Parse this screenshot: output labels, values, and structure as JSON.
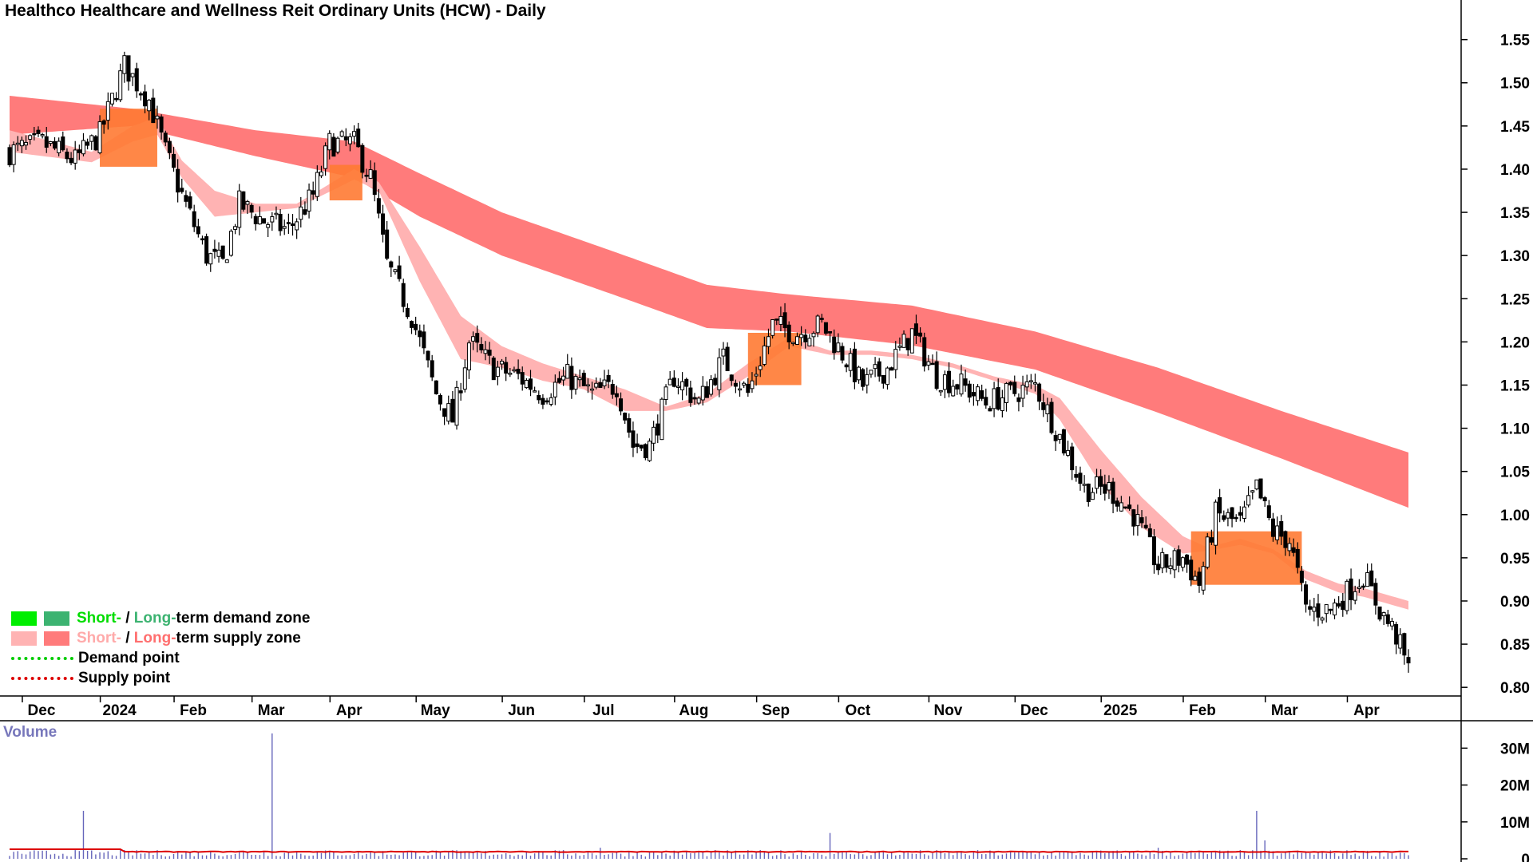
{
  "title": "Healthco Healthcare and Wellness Reit Ordinary Units (HCW) - Daily",
  "colors": {
    "demand_short": "#00ee00",
    "demand_long": "#3cb371",
    "supply_short": "#ffb3b3",
    "supply_long": "#ff7b7b",
    "overlap": "#ff7a33",
    "demand_point": "#00cc00",
    "supply_point": "#dd0000",
    "volume_bar": "#6666bb",
    "volume_ma": "#dd0000"
  },
  "legend": {
    "demand_short": "Short-",
    "demand_sep": " / ",
    "demand_long": "Long-",
    "demand_rest": "term demand zone",
    "supply_short": "Short-",
    "supply_sep": " / ",
    "supply_long": "Long-",
    "supply_rest": "term supply zone",
    "demand_point": "Demand point",
    "supply_point": "Supply point"
  },
  "volume_label": "Volume",
  "chart_data": {
    "type": "line",
    "title": "Healthco Healthcare and Wellness Reit Ordinary Units (HCW) - Daily",
    "y_axis_ticks": [
      "1.55",
      "1.50",
      "1.45",
      "1.40",
      "1.35",
      "1.30",
      "1.25",
      "1.20",
      "1.15",
      "1.10",
      "1.05",
      "1.00",
      "0.95",
      "0.90",
      "0.85",
      "0.80"
    ],
    "ylim": [
      0.79,
      1.57
    ],
    "x_tick_labels": [
      "Dec",
      "2024",
      "Feb",
      "Mar",
      "Apr",
      "May",
      "Jun",
      "Jul",
      "Aug",
      "Sep",
      "Oct",
      "Nov",
      "Dec",
      "2025",
      "Feb",
      "Mar",
      "Apr"
    ],
    "x_tick_index": [
      7,
      26,
      44,
      63,
      82,
      103,
      124,
      144,
      166,
      186,
      206,
      228,
      249,
      270,
      290,
      310,
      330
    ],
    "num_days": 342,
    "close_anchors": [
      [
        0,
        1.42
      ],
      [
        8,
        1.43
      ],
      [
        16,
        1.41
      ],
      [
        22,
        1.44
      ],
      [
        28,
        1.52
      ],
      [
        34,
        1.48
      ],
      [
        38,
        1.42
      ],
      [
        42,
        1.37
      ],
      [
        48,
        1.3
      ],
      [
        52,
        1.29
      ],
      [
        56,
        1.36
      ],
      [
        62,
        1.34
      ],
      [
        68,
        1.33
      ],
      [
        74,
        1.37
      ],
      [
        78,
        1.43
      ],
      [
        84,
        1.43
      ],
      [
        88,
        1.39
      ],
      [
        92,
        1.29
      ],
      [
        98,
        1.23
      ],
      [
        104,
        1.14
      ],
      [
        108,
        1.11
      ],
      [
        112,
        1.2
      ],
      [
        118,
        1.17
      ],
      [
        124,
        1.16
      ],
      [
        130,
        1.14
      ],
      [
        136,
        1.16
      ],
      [
        142,
        1.14
      ],
      [
        148,
        1.15
      ],
      [
        152,
        1.08
      ],
      [
        156,
        1.08
      ],
      [
        162,
        1.16
      ],
      [
        168,
        1.13
      ],
      [
        174,
        1.18
      ],
      [
        180,
        1.14
      ],
      [
        186,
        1.22
      ],
      [
        192,
        1.21
      ],
      [
        198,
        1.22
      ],
      [
        204,
        1.18
      ],
      [
        208,
        1.15
      ],
      [
        214,
        1.17
      ],
      [
        220,
        1.21
      ],
      [
        226,
        1.16
      ],
      [
        232,
        1.15
      ],
      [
        238,
        1.13
      ],
      [
        244,
        1.14
      ],
      [
        250,
        1.15
      ],
      [
        256,
        1.09
      ],
      [
        262,
        1.03
      ],
      [
        268,
        1.03
      ],
      [
        274,
        1.0
      ],
      [
        280,
        0.94
      ],
      [
        286,
        0.95
      ],
      [
        290,
        0.92
      ],
      [
        294,
        1.0
      ],
      [
        300,
        0.99
      ],
      [
        304,
        1.03
      ],
      [
        308,
        0.98
      ],
      [
        312,
        0.97
      ],
      [
        316,
        0.89
      ],
      [
        322,
        0.89
      ],
      [
        326,
        0.91
      ],
      [
        330,
        0.93
      ],
      [
        334,
        0.89
      ],
      [
        338,
        0.86
      ],
      [
        341,
        0.82
      ]
    ],
    "long_zone_anchors": [
      [
        0,
        1.485,
        1.44
      ],
      [
        30,
        1.47,
        1.45
      ],
      [
        60,
        1.445,
        1.415
      ],
      [
        84,
        1.432,
        1.39
      ],
      [
        100,
        1.395,
        1.345
      ],
      [
        120,
        1.35,
        1.3
      ],
      [
        150,
        1.3,
        1.25
      ],
      [
        170,
        1.266,
        1.216
      ],
      [
        190,
        1.255,
        1.212
      ],
      [
        220,
        1.242,
        1.196
      ],
      [
        250,
        1.212,
        1.168
      ],
      [
        280,
        1.17,
        1.118
      ],
      [
        310,
        1.12,
        1.065
      ],
      [
        341,
        1.072,
        1.008
      ]
    ],
    "short_zone_anchors": [
      [
        0,
        1.445,
        1.42
      ],
      [
        20,
        1.42,
        1.408
      ],
      [
        30,
        1.45,
        1.432
      ],
      [
        36,
        1.46,
        1.44
      ],
      [
        42,
        1.41,
        1.39
      ],
      [
        50,
        1.375,
        1.345
      ],
      [
        60,
        1.36,
        1.35
      ],
      [
        70,
        1.36,
        1.355
      ],
      [
        84,
        1.4,
        1.388
      ],
      [
        90,
        1.385,
        1.375
      ],
      [
        100,
        1.31,
        1.27
      ],
      [
        110,
        1.23,
        1.18
      ],
      [
        120,
        1.195,
        1.17
      ],
      [
        130,
        1.175,
        1.155
      ],
      [
        140,
        1.16,
        1.145
      ],
      [
        150,
        1.145,
        1.12
      ],
      [
        160,
        1.125,
        1.12
      ],
      [
        170,
        1.14,
        1.13
      ],
      [
        180,
        1.175,
        1.16
      ],
      [
        190,
        1.205,
        1.195
      ],
      [
        200,
        1.19,
        1.185
      ],
      [
        210,
        1.19,
        1.185
      ],
      [
        220,
        1.185,
        1.18
      ],
      [
        230,
        1.175,
        1.17
      ],
      [
        240,
        1.16,
        1.155
      ],
      [
        250,
        1.15,
        1.14
      ],
      [
        256,
        1.135,
        1.11
      ],
      [
        266,
        1.075,
        1.035
      ],
      [
        276,
        1.02,
        0.985
      ],
      [
        286,
        0.975,
        0.955
      ],
      [
        292,
        0.962,
        0.958
      ],
      [
        300,
        0.972,
        0.965
      ],
      [
        308,
        0.96,
        0.955
      ],
      [
        316,
        0.935,
        0.925
      ],
      [
        324,
        0.92,
        0.91
      ],
      [
        330,
        0.915,
        0.905
      ],
      [
        341,
        0.9,
        0.89
      ]
    ],
    "overlap_zones": [
      [
        22,
        36
      ],
      [
        78,
        86
      ],
      [
        180,
        193
      ],
      [
        288,
        315
      ]
    ],
    "volume_axis_ticks": [
      "30M",
      "20M",
      "10M",
      "0"
    ],
    "volume_max": 37,
    "volume_spikes": [
      [
        18,
        13
      ],
      [
        64,
        34
      ],
      [
        200,
        7
      ],
      [
        304,
        13
      ],
      [
        306,
        5
      ],
      [
        144,
        3
      ],
      [
        130,
        2
      ],
      [
        280,
        3
      ]
    ],
    "volume_baseline": 1.5
  }
}
